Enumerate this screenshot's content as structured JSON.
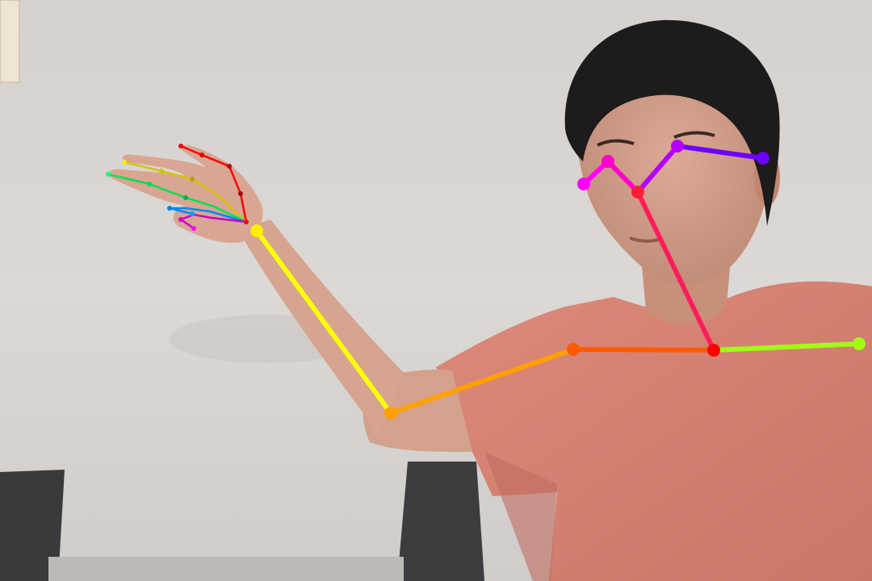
{
  "scene": {
    "description_tag": "webcam-frame",
    "colors": {
      "wall": "#d9d6d3",
      "wall_shadow": "#b9b6b3",
      "skin": "#d7a48f",
      "skin_shadow": "#b8826f",
      "hair": "#1c1a1a",
      "shirt": "#d98677",
      "shirt_shadow": "#b9685c",
      "chair": "#3b3b3d",
      "frame": "#e9e2cf"
    }
  },
  "pose_overlay": {
    "body_bones": [
      {
        "name": "nose-neck",
        "color": "#ff1e5a"
      },
      {
        "name": "neck-right-shoulder",
        "color": "#ff5a00"
      },
      {
        "name": "right-shoulder-right-elbow",
        "color": "#ffa000"
      },
      {
        "name": "right-elbow-right-wrist",
        "color": "#ffff00"
      },
      {
        "name": "neck-left-shoulder",
        "color": "#a0ff14"
      },
      {
        "name": "nose-right-eye",
        "color": "#ff00c8"
      },
      {
        "name": "right-eye-right-ear",
        "color": "#ff00ff"
      },
      {
        "name": "nose-left-eye",
        "color": "#b400ff"
      },
      {
        "name": "left-eye-left-ear",
        "color": "#6e00ff"
      }
    ],
    "hand_fingers": [
      {
        "name": "thumb",
        "color": "#ff0000"
      },
      {
        "name": "index",
        "color": "#d4c400"
      },
      {
        "name": "middle",
        "color": "#00e050"
      },
      {
        "name": "ring",
        "color": "#0088ff"
      },
      {
        "name": "pinky",
        "color": "#cc00cc"
      }
    ]
  }
}
